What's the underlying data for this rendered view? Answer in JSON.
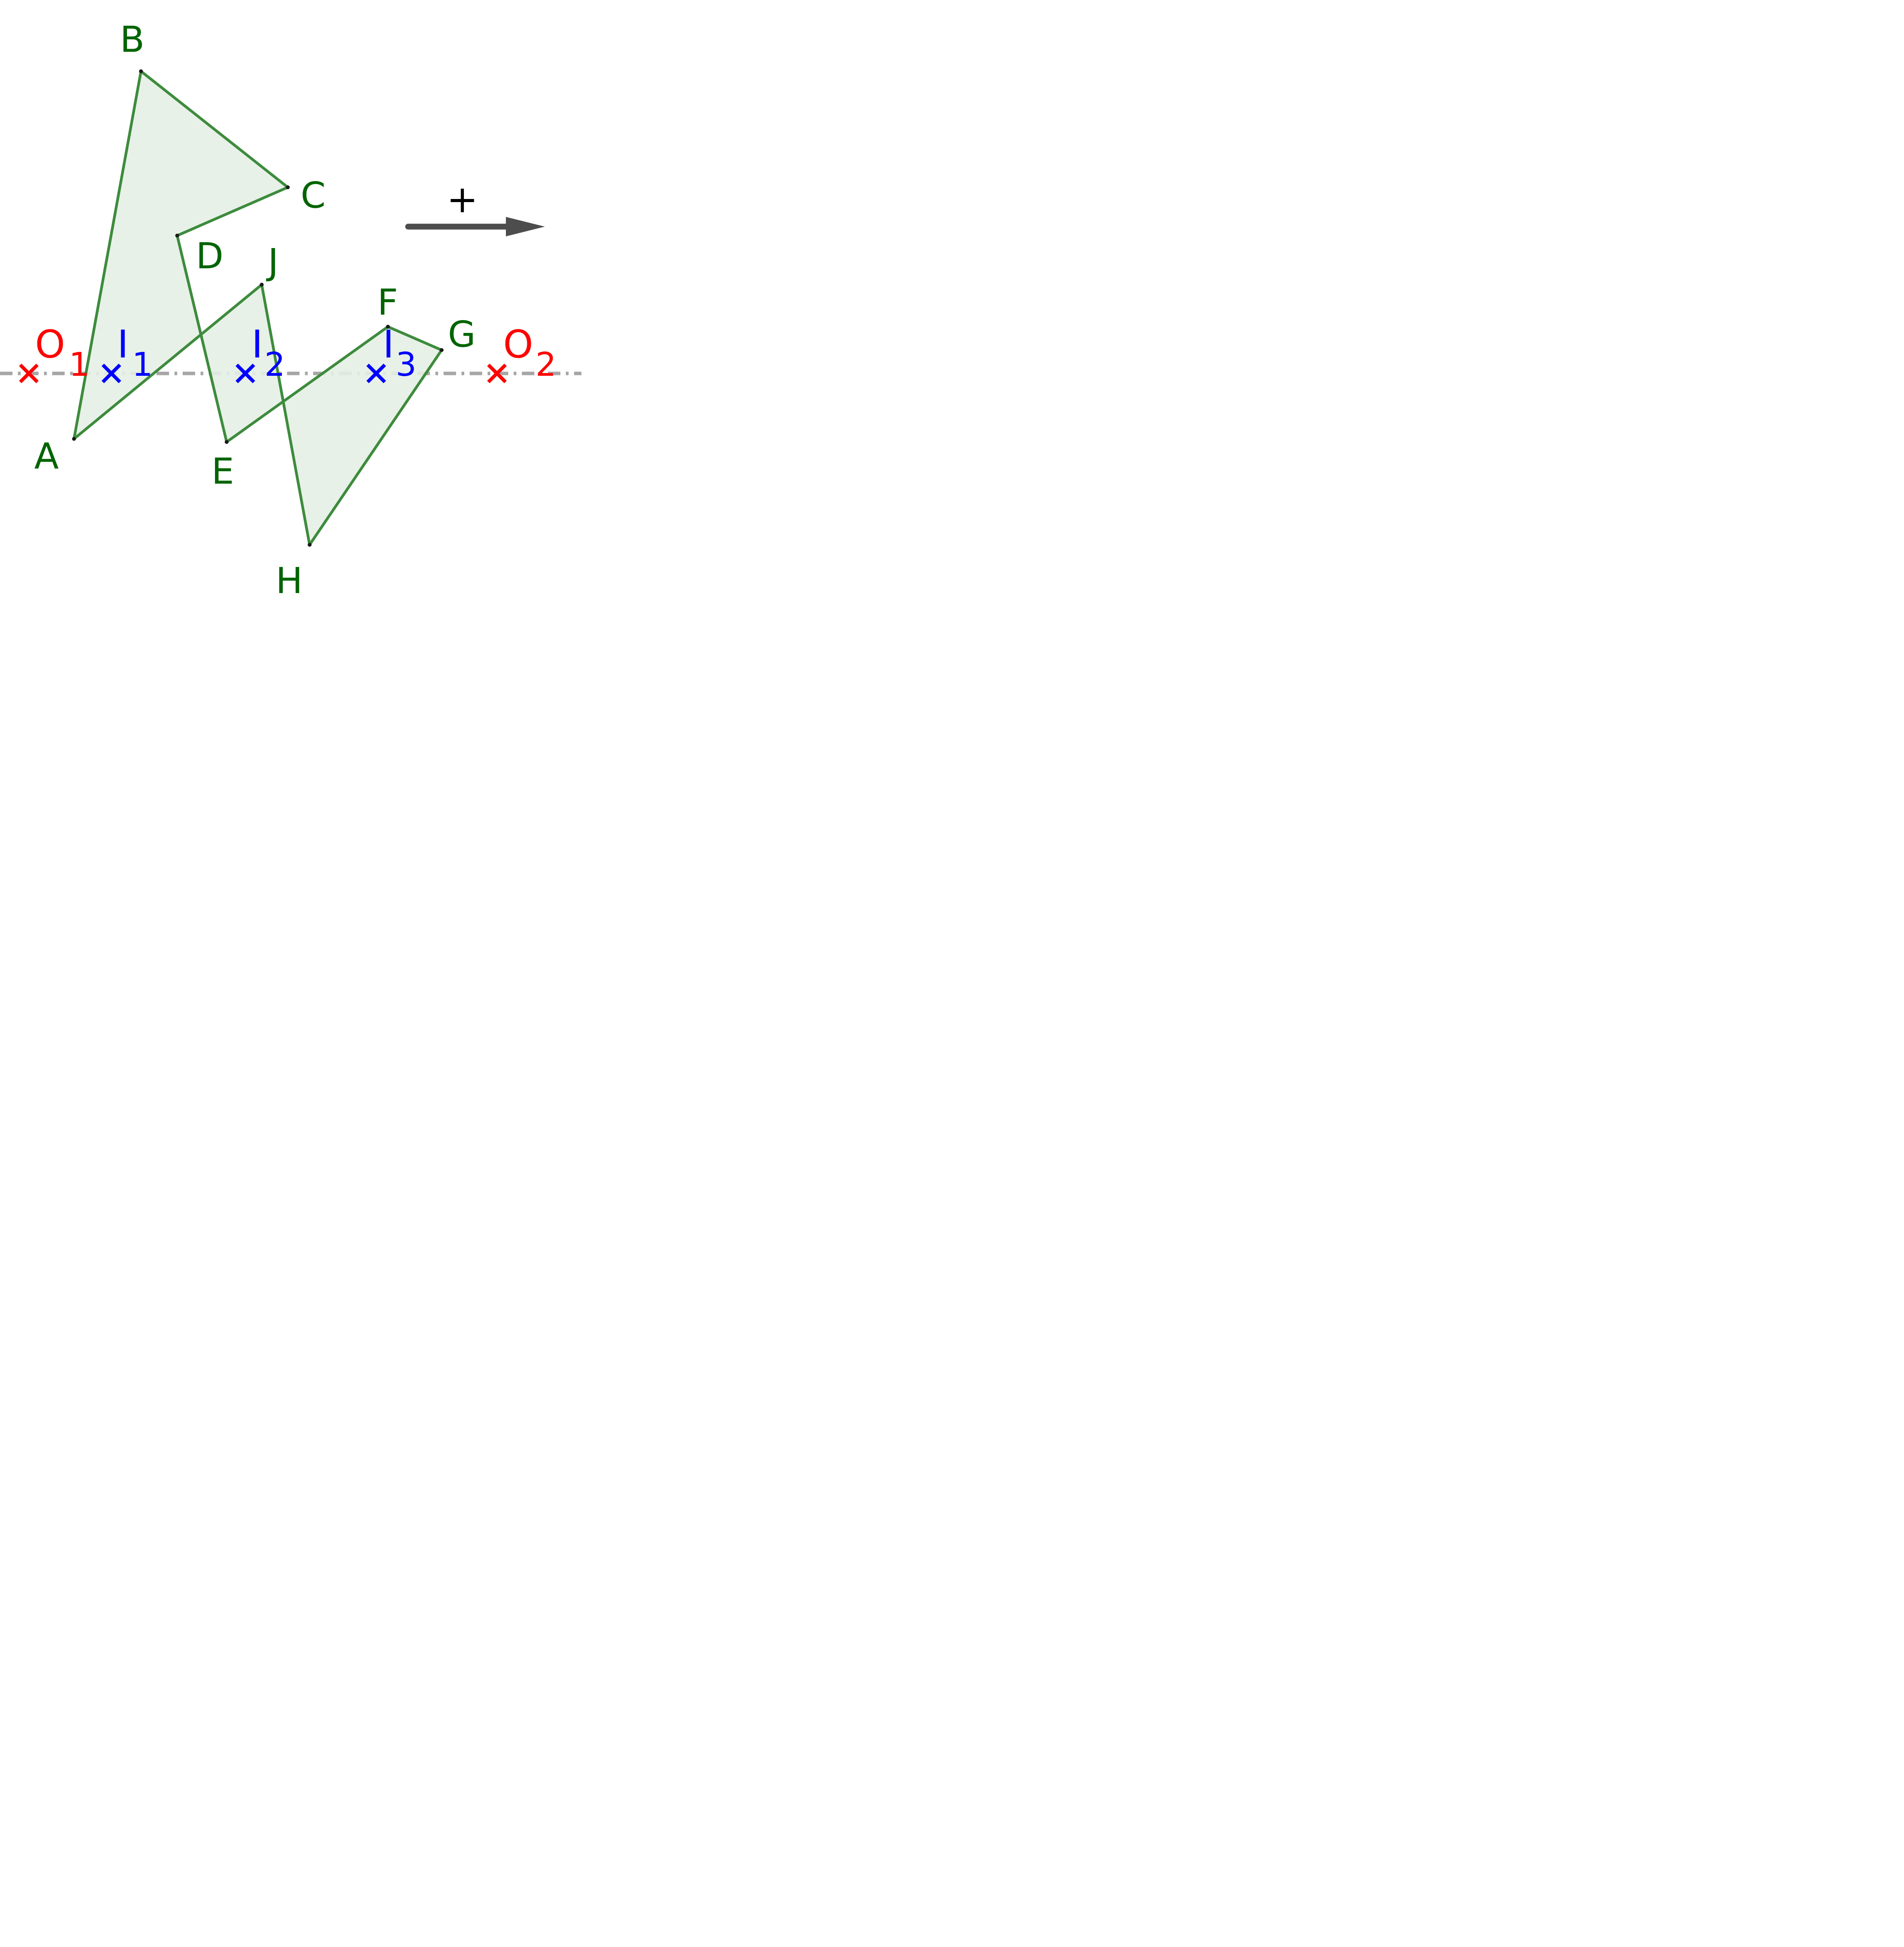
{
  "figure": {
    "colors": {
      "polygon_stroke": "#3d8b3d",
      "polygon_fill": "#e4efe4",
      "vertex_label": "#006400",
      "outer_point": "#ff0000",
      "inner_point": "#0000ff",
      "axis_line": "#a6a6a6",
      "arrow": "#4d4d4d",
      "vertex_dot": "#1a1a1a"
    },
    "vertices": [
      {
        "id": "A",
        "label": "A"
      },
      {
        "id": "B",
        "label": "B"
      },
      {
        "id": "C",
        "label": "C"
      },
      {
        "id": "D",
        "label": "D"
      },
      {
        "id": "E",
        "label": "E"
      },
      {
        "id": "F",
        "label": "F"
      },
      {
        "id": "G",
        "label": "G"
      },
      {
        "id": "H",
        "label": "H"
      },
      {
        "id": "J",
        "label": "J"
      }
    ],
    "outer_points": [
      {
        "id": "O1",
        "letter": "O",
        "subscript": "1",
        "marker": "cross-icon"
      },
      {
        "id": "O2",
        "letter": "O",
        "subscript": "2",
        "marker": "cross-icon"
      }
    ],
    "inner_points": [
      {
        "id": "I1",
        "letter": "I",
        "subscript": "1",
        "marker": "cross-icon"
      },
      {
        "id": "I2",
        "letter": "I",
        "subscript": "2",
        "marker": "cross-icon"
      },
      {
        "id": "I3",
        "letter": "I",
        "subscript": "3",
        "marker": "cross-icon"
      }
    ],
    "direction": {
      "label": "+",
      "icon": "arrow-right-icon"
    }
  }
}
